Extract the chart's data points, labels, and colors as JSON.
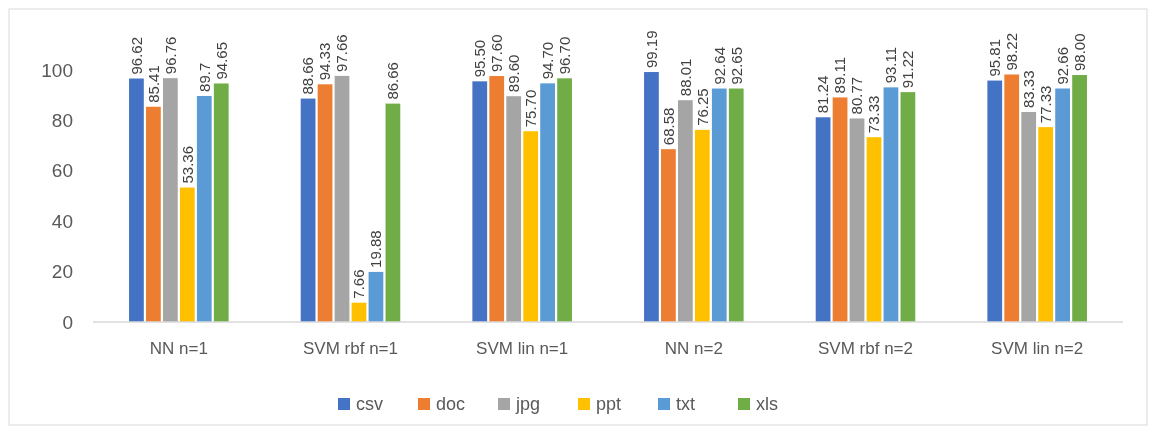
{
  "chart_data": {
    "type": "bar",
    "categories": [
      "NN n=1",
      "SVM rbf n=1",
      "SVM lin n=1",
      "NN n=2",
      "SVM rbf n=2",
      "SVM lin n=2"
    ],
    "series": [
      {
        "name": "csv",
        "color": "#4472c4",
        "values": [
          96.62,
          88.66,
          95.5,
          99.19,
          81.24,
          95.81
        ],
        "value_labels": [
          "96.62",
          "88.66",
          "95.50",
          "99.19",
          "81.24",
          "95.81"
        ]
      },
      {
        "name": "doc",
        "color": "#ed7d31",
        "values": [
          85.41,
          94.33,
          97.6,
          68.58,
          89.11,
          98.22
        ],
        "value_labels": [
          "85.41",
          "94.33",
          "97.60",
          "68.58",
          "89.11",
          "98.22"
        ]
      },
      {
        "name": "jpg",
        "color": "#a5a5a5",
        "values": [
          96.76,
          97.66,
          89.6,
          88.01,
          80.77,
          83.33
        ],
        "value_labels": [
          "96.76",
          "97.66",
          "89.60",
          "88.01",
          "80.77",
          "83.33"
        ]
      },
      {
        "name": "ppt",
        "color": "#ffc000",
        "values": [
          53.36,
          7.66,
          75.7,
          76.25,
          73.33,
          77.33
        ],
        "value_labels": [
          "53.36",
          "7.66",
          "75.70",
          "76.25",
          "73.33",
          "77.33"
        ]
      },
      {
        "name": "txt",
        "color": "#5b9bd5",
        "values": [
          89.7,
          19.88,
          94.7,
          92.64,
          93.11,
          92.66
        ],
        "value_labels": [
          "89.7",
          "19.88",
          "94.70",
          "92.64",
          "93.11",
          "92.66"
        ]
      },
      {
        "name": "xls",
        "color": "#70ad47",
        "values": [
          94.65,
          86.66,
          96.7,
          92.65,
          91.22,
          98.0
        ],
        "value_labels": [
          "94.65",
          "86.66",
          "96.70",
          "92.65",
          "91.22",
          "98.00"
        ]
      }
    ],
    "ylim": [
      0,
      100
    ],
    "yticks": [
      0,
      20,
      40,
      60,
      80,
      100
    ],
    "grid": false,
    "legend": "bottom"
  }
}
